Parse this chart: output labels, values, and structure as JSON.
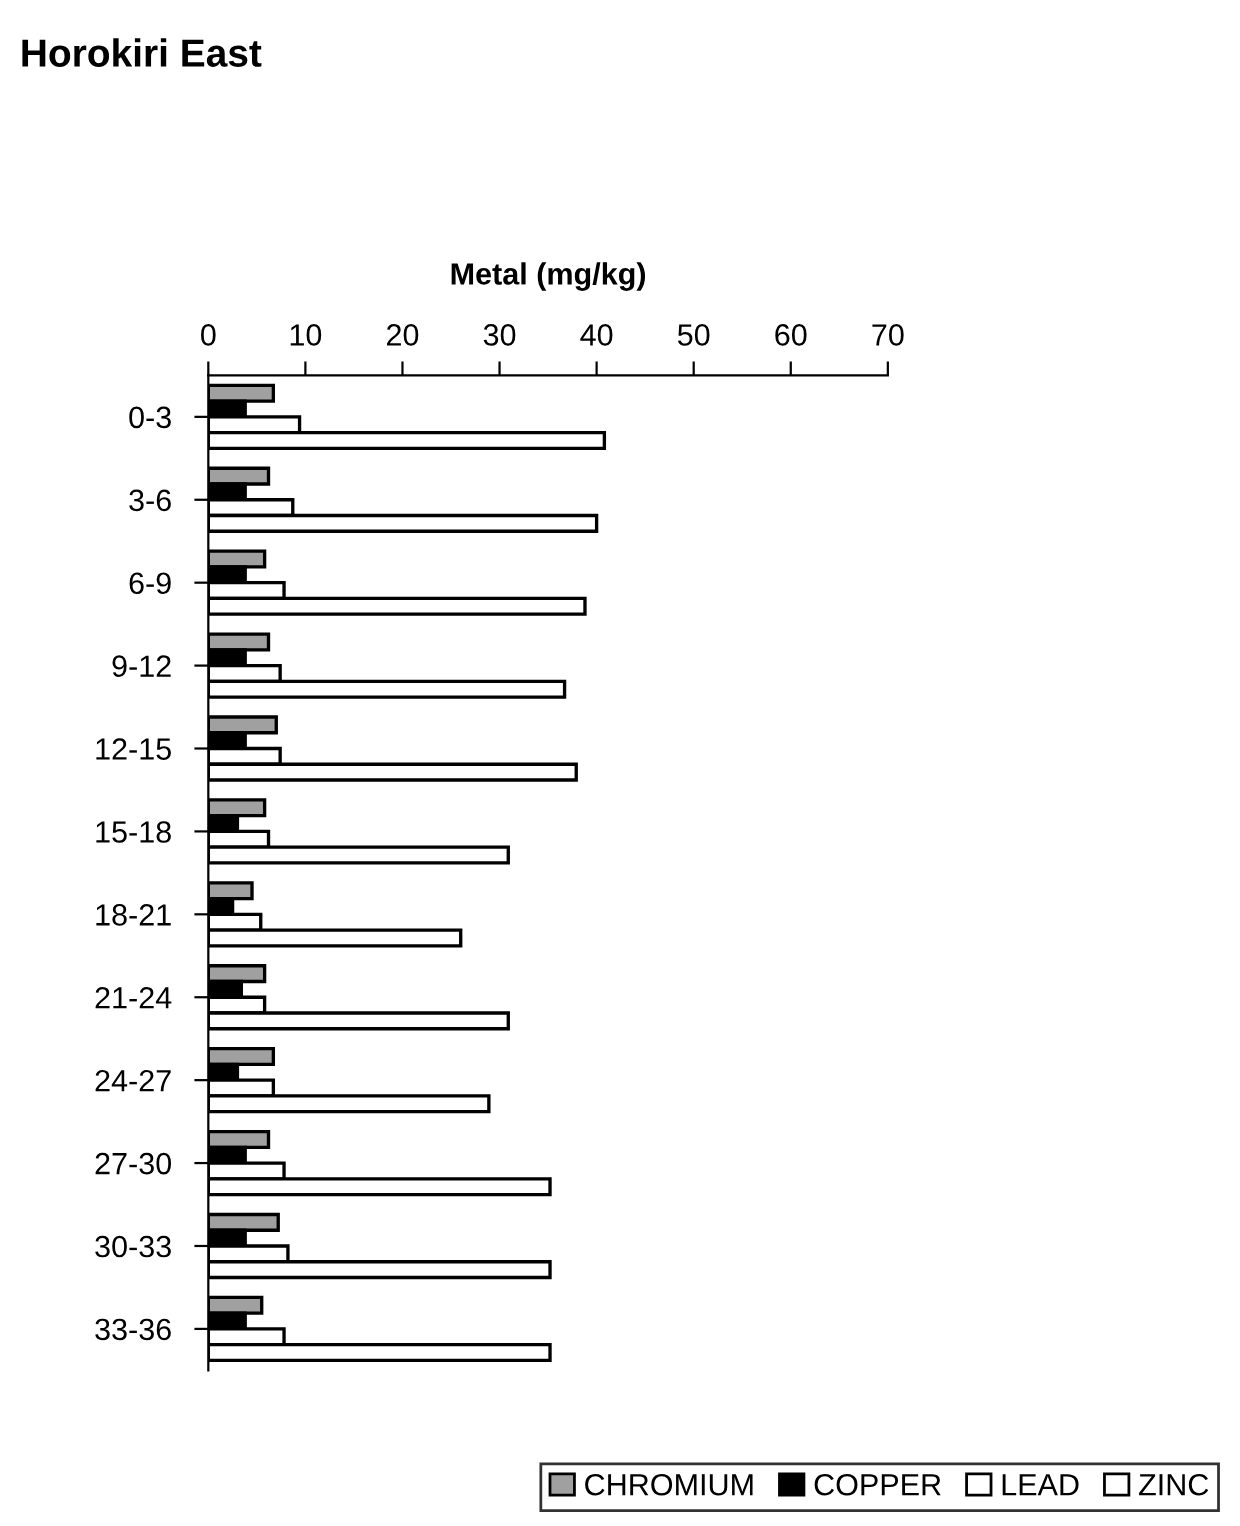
{
  "chart_data": {
    "type": "bar",
    "orientation": "horizontal",
    "title": "Horokiri East",
    "xlabel": "Metal (mg/kg)",
    "categories": [
      "0-3",
      "3-6",
      "6-9",
      "9-12",
      "12-15",
      "15-18",
      "18-21",
      "21-24",
      "24-27",
      "27-30",
      "30-33",
      "33-36"
    ],
    "series": [
      {
        "name": "CHROMIUM",
        "color": "#a0a0a0",
        "values": [
          6.7,
          6.2,
          5.8,
          6.2,
          7.0,
          5.8,
          4.5,
          5.8,
          6.7,
          6.2,
          7.2,
          5.5
        ]
      },
      {
        "name": "COPPER",
        "color": "#000000",
        "values": [
          3.8,
          3.8,
          3.8,
          3.8,
          3.8,
          3.0,
          2.5,
          3.4,
          3.0,
          3.8,
          3.8,
          3.8
        ]
      },
      {
        "name": "LEAD",
        "color": "#ffffff",
        "values": [
          9.4,
          8.7,
          7.8,
          7.4,
          7.4,
          6.2,
          5.4,
          5.8,
          6.7,
          7.8,
          8.2,
          7.8
        ]
      },
      {
        "name": "ZINC",
        "color": "#ffffff",
        "values": [
          40.8,
          40.0,
          38.8,
          36.7,
          37.9,
          30.9,
          26.0,
          30.9,
          28.9,
          35.2,
          35.2,
          35.2
        ]
      }
    ],
    "xlim": [
      0,
      70
    ],
    "xticks": [
      0,
      10,
      20,
      30,
      40,
      50,
      60,
      70
    ],
    "grid": false,
    "legend": "bottom right"
  }
}
